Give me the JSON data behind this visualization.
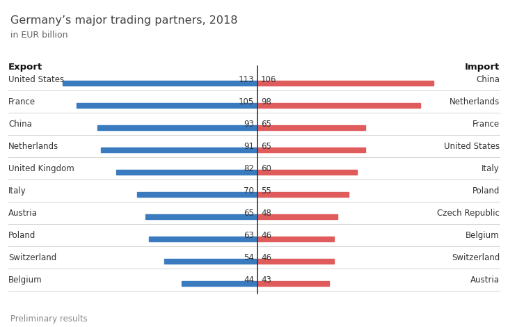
{
  "title": "Germany’s major trading partners, 2018",
  "subtitle": "in EUR billion",
  "footnote": "Preliminary results",
  "export_label": "Export",
  "import_label": "Import",
  "export_data": [
    {
      "country": "United States",
      "value": 113
    },
    {
      "country": "France",
      "value": 105
    },
    {
      "country": "China",
      "value": 93
    },
    {
      "country": "Netherlands",
      "value": 91
    },
    {
      "country": "United Kingdom",
      "value": 82
    },
    {
      "country": "Italy",
      "value": 70
    },
    {
      "country": "Austria",
      "value": 65
    },
    {
      "country": "Poland",
      "value": 63
    },
    {
      "country": "Switzerland",
      "value": 54
    },
    {
      "country": "Belgium",
      "value": 44
    }
  ],
  "import_data": [
    {
      "country": "China",
      "value": 106
    },
    {
      "country": "Netherlands",
      "value": 98
    },
    {
      "country": "France",
      "value": 65
    },
    {
      "country": "United States",
      "value": 65
    },
    {
      "country": "Italy",
      "value": 60
    },
    {
      "country": "Poland",
      "value": 55
    },
    {
      "country": "Czech Republic",
      "value": 48
    },
    {
      "country": "Belgium",
      "value": 46
    },
    {
      "country": "Switzerland",
      "value": 46
    },
    {
      "country": "Austria",
      "value": 43
    }
  ],
  "export_color": "#3a7bbf",
  "import_color": "#e05c5c",
  "max_value": 113,
  "background_color": "#ffffff",
  "title_fontsize": 11.5,
  "subtitle_fontsize": 9,
  "header_fontsize": 9.5,
  "label_fontsize": 8.5,
  "value_fontsize": 8.5,
  "footnote_fontsize": 8.5
}
